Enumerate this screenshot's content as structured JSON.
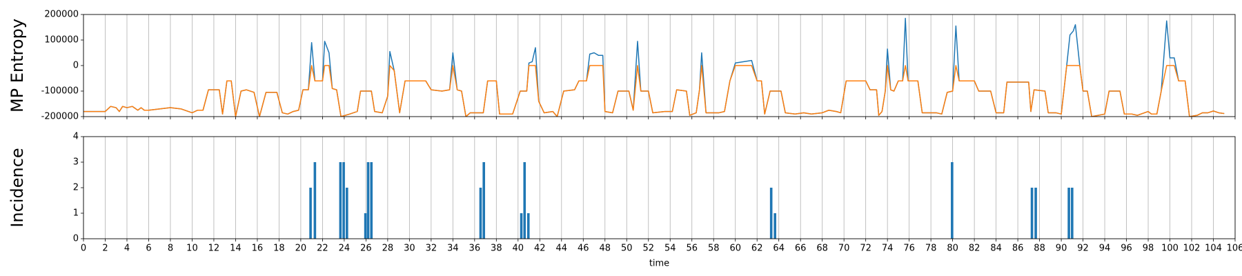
{
  "chart_data": [
    {
      "type": "line",
      "ylabel": "MP Entropy",
      "x": [
        0,
        1,
        2,
        2.5,
        3,
        3.3,
        3.6,
        4,
        4.5,
        5,
        5.3,
        5.6,
        6,
        7,
        8,
        9,
        10,
        10.5,
        11,
        11.5,
        12.5,
        12.8,
        13.2,
        13.6,
        14,
        14.5,
        15,
        15.7,
        16.2,
        16.8,
        17.8,
        18.3,
        18.8,
        19.3,
        19.8,
        20.2,
        20.7,
        21.0,
        21.3,
        22.0,
        22.2,
        22.6,
        22.9,
        23.3,
        23.7,
        24.5,
        25.2,
        25.5,
        26.5,
        26.8,
        27.5,
        28.0,
        28.2,
        28.6,
        29.1,
        29.6,
        31.5,
        32,
        33,
        33.7,
        34.0,
        34.4,
        34.8,
        35.2,
        35.6,
        36.8,
        37.2,
        38,
        38.3,
        39.5,
        40.2,
        40.8,
        41.0,
        41.3,
        41.6,
        41.9,
        42.4,
        43.2,
        43.6,
        44.2,
        45.2,
        45.6,
        46.3,
        46.6,
        47,
        47.4,
        47.8,
        48.0,
        48.7,
        49.2,
        50.2,
        50.6,
        51.0,
        51.3,
        52,
        52.4,
        53.5,
        54.2,
        54.6,
        55.5,
        55.8,
        56.4,
        56.7,
        56.9,
        57.3,
        58.5,
        59,
        59.5,
        60,
        61.5,
        62,
        62.4,
        62.7,
        63.2,
        64.2,
        64.6,
        65.5,
        66.3,
        67,
        68,
        68.6,
        69.3,
        69.7,
        70.2,
        72,
        72.4,
        73,
        73.2,
        73.5,
        73.8,
        74.0,
        74.3,
        74.6,
        75,
        75.4,
        75.65,
        75.9,
        76.8,
        77.2,
        78.5,
        79,
        79.5,
        80,
        80.3,
        80.6,
        82,
        82.4,
        83.5,
        84,
        84.7,
        85,
        87,
        87.2,
        87.5,
        88.5,
        88.8,
        89.5,
        90,
        90.5,
        90.8,
        91.1,
        91.3,
        91.7,
        92,
        92.4,
        92.8,
        94,
        94.4,
        95.4,
        95.8,
        96.5,
        97,
        98,
        98.3,
        98.8,
        99.2,
        99.7,
        100,
        100.4,
        100.8,
        101.4,
        101.8,
        102.5,
        103,
        103.5,
        104,
        104.5,
        105
      ],
      "series": [
        {
          "color": "#1f77b4",
          "values": [
            -180000,
            -180000,
            -180000,
            -160000,
            -165000,
            -180000,
            -160000,
            -165000,
            -160000,
            -175000,
            -165000,
            -175000,
            -175000,
            -170000,
            -165000,
            -170000,
            -185000,
            -175000,
            -175000,
            -95000,
            -95000,
            -190000,
            -60000,
            -60000,
            -200000,
            -100000,
            -95000,
            -105000,
            -200000,
            -105000,
            -105000,
            -185000,
            -190000,
            -180000,
            -175000,
            -95000,
            -95000,
            90000,
            -60000,
            -60000,
            95000,
            50000,
            -90000,
            -95000,
            -200000,
            -190000,
            -180000,
            -100000,
            -100000,
            -180000,
            -185000,
            -120000,
            55000,
            -20000,
            -185000,
            -60000,
            -60000,
            -95000,
            -100000,
            -95000,
            50000,
            -95000,
            -100000,
            -200000,
            -185000,
            -185000,
            -60000,
            -60000,
            -190000,
            -190000,
            -100000,
            -100000,
            10000,
            15000,
            70000,
            -140000,
            -185000,
            -180000,
            -200000,
            -100000,
            -95000,
            -60000,
            -60000,
            45000,
            50000,
            40000,
            40000,
            -180000,
            -185000,
            -100000,
            -100000,
            -175000,
            95000,
            -100000,
            -100000,
            -185000,
            -180000,
            -180000,
            -95000,
            -100000,
            -195000,
            -185000,
            -95000,
            50000,
            -185000,
            -185000,
            -180000,
            -60000,
            10000,
            20000,
            -60000,
            -60000,
            -190000,
            -100000,
            -100000,
            -185000,
            -190000,
            -185000,
            -190000,
            -185000,
            -175000,
            -180000,
            -185000,
            -60000,
            -60000,
            -95000,
            -95000,
            -195000,
            -180000,
            -100000,
            65000,
            -95000,
            -100000,
            -60000,
            -60000,
            185000,
            -60000,
            -60000,
            -185000,
            -185000,
            -190000,
            -105000,
            -100000,
            155000,
            -60000,
            -60000,
            -100000,
            -100000,
            -185000,
            -185000,
            -65000,
            -65000,
            -180000,
            -95000,
            -100000,
            -185000,
            -185000,
            -190000,
            0,
            120000,
            135000,
            160000,
            0,
            -100000,
            -100000,
            -200000,
            -190000,
            -100000,
            -100000,
            -190000,
            -190000,
            -195000,
            -180000,
            -190000,
            -190000,
            -100000,
            175000,
            30000,
            30000,
            -60000,
            -60000,
            -200000,
            -195000,
            -185000,
            -185000,
            -178000,
            -185000,
            -188000
          ]
        },
        {
          "color": "#ff7f0e",
          "values": [
            -180000,
            -180000,
            -180000,
            -160000,
            -165000,
            -180000,
            -160000,
            -165000,
            -160000,
            -175000,
            -165000,
            -175000,
            -175000,
            -170000,
            -165000,
            -170000,
            -185000,
            -175000,
            -175000,
            -95000,
            -95000,
            -190000,
            -60000,
            -60000,
            -200000,
            -100000,
            -95000,
            -105000,
            -200000,
            -105000,
            -105000,
            -185000,
            -190000,
            -180000,
            -175000,
            -95000,
            -95000,
            0,
            -60000,
            -60000,
            0,
            0,
            -90000,
            -95000,
            -200000,
            -190000,
            -180000,
            -100000,
            -100000,
            -180000,
            -185000,
            -120000,
            0,
            -20000,
            -185000,
            -60000,
            -60000,
            -95000,
            -100000,
            -95000,
            0,
            -95000,
            -100000,
            -200000,
            -185000,
            -185000,
            -60000,
            -60000,
            -190000,
            -190000,
            -100000,
            -100000,
            0,
            0,
            0,
            -140000,
            -185000,
            -180000,
            -200000,
            -100000,
            -95000,
            -60000,
            -60000,
            0,
            0,
            0,
            0,
            -180000,
            -185000,
            -100000,
            -100000,
            -175000,
            0,
            -100000,
            -100000,
            -185000,
            -180000,
            -180000,
            -95000,
            -100000,
            -195000,
            -185000,
            -95000,
            0,
            -185000,
            -185000,
            -180000,
            -60000,
            0,
            0,
            -60000,
            -60000,
            -190000,
            -100000,
            -100000,
            -185000,
            -190000,
            -185000,
            -190000,
            -185000,
            -175000,
            -180000,
            -185000,
            -60000,
            -60000,
            -95000,
            -95000,
            -195000,
            -180000,
            -100000,
            0,
            -95000,
            -100000,
            -60000,
            -60000,
            0,
            -60000,
            -60000,
            -185000,
            -185000,
            -190000,
            -105000,
            -100000,
            0,
            -60000,
            -60000,
            -100000,
            -100000,
            -185000,
            -185000,
            -65000,
            -65000,
            -180000,
            -95000,
            -100000,
            -185000,
            -185000,
            -190000,
            0,
            0,
            0,
            0,
            0,
            -100000,
            -100000,
            -200000,
            -190000,
            -100000,
            -100000,
            -190000,
            -190000,
            -195000,
            -180000,
            -190000,
            -190000,
            -100000,
            0,
            0,
            0,
            -60000,
            -60000,
            -200000,
            -195000,
            -185000,
            -185000,
            -178000,
            -185000,
            -188000
          ]
        }
      ],
      "xlim": [
        0,
        106
      ],
      "xticks": [
        0,
        2,
        4,
        6,
        8,
        10,
        12,
        14,
        16,
        18,
        20,
        22,
        24,
        26,
        28,
        30,
        32,
        34,
        36,
        38,
        40,
        42,
        44,
        46,
        48,
        50,
        52,
        54,
        56,
        58,
        60,
        62,
        64,
        66,
        68,
        70,
        72,
        74,
        76,
        78,
        80,
        82,
        84,
        86,
        88,
        90,
        92,
        94,
        96,
        98,
        100,
        102,
        104,
        106
      ],
      "ylim": [
        -200000,
        200000
      ],
      "yticks": [
        -200000,
        -100000,
        0,
        100000,
        200000
      ],
      "grid": true
    },
    {
      "type": "bar",
      "ylabel": "Incidence",
      "xlabel": "time",
      "color": "#1f77b4",
      "x": [
        20.9,
        21.3,
        23.65,
        23.95,
        24.25,
        25.95,
        26.2,
        26.5,
        36.55,
        36.85,
        40.3,
        40.6,
        40.95,
        63.3,
        63.65,
        79.95,
        87.3,
        87.65,
        90.7,
        91.0
      ],
      "values": [
        2,
        3,
        3,
        3,
        2,
        1,
        3,
        3,
        2,
        3,
        1,
        3,
        1,
        2,
        1,
        3,
        2,
        2,
        2,
        2
      ],
      "xlim": [
        0,
        106
      ],
      "xticks": [
        0,
        2,
        4,
        6,
        8,
        10,
        12,
        14,
        16,
        18,
        20,
        22,
        24,
        26,
        28,
        30,
        32,
        34,
        36,
        38,
        40,
        42,
        44,
        46,
        48,
        50,
        52,
        54,
        56,
        58,
        60,
        62,
        64,
        66,
        68,
        70,
        72,
        74,
        76,
        78,
        80,
        82,
        84,
        86,
        88,
        90,
        92,
        94,
        96,
        98,
        100,
        102,
        104,
        106
      ],
      "ylim": [
        0,
        4
      ],
      "yticks": [
        0,
        1,
        2,
        3,
        4
      ],
      "grid": true
    }
  ]
}
